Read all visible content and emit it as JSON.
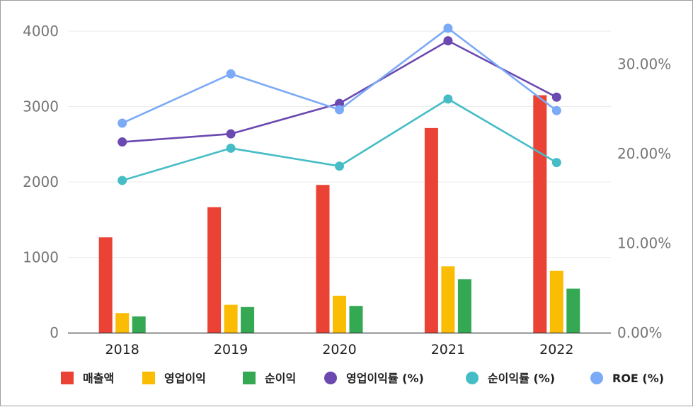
{
  "chart_data": {
    "type": "bar+line",
    "categories": [
      "2018",
      "2019",
      "2020",
      "2021",
      "2022"
    ],
    "left_axis": {
      "ticks": [
        "0",
        "1000",
        "2000",
        "3000",
        "4000"
      ],
      "ylim": [
        0,
        4000
      ]
    },
    "right_axis": {
      "ticks": [
        "0.00%",
        "10.00%",
        "20.00%",
        "30.00%"
      ],
      "ylim_percent": [
        0,
        34
      ]
    },
    "bar_series": [
      {
        "name": "매출액",
        "color": "#EA4335",
        "values": [
          1265,
          1665,
          1960,
          2715,
          3150
        ]
      },
      {
        "name": "영업이익",
        "color": "#FBBC04",
        "values": [
          260,
          370,
          490,
          880,
          820
        ]
      },
      {
        "name": "순이익",
        "color": "#34A853",
        "values": [
          215,
          340,
          355,
          710,
          585
        ]
      }
    ],
    "line_series": [
      {
        "name": "영업이익률 (%)",
        "color": "#6B49B0",
        "values": [
          21.3,
          22.2,
          25.6,
          32.6,
          26.3
        ]
      },
      {
        "name": "순이익률 (%)",
        "color": "#46BDC6",
        "values": [
          17.0,
          20.6,
          18.6,
          26.1,
          19.0
        ]
      },
      {
        "name": "ROE (%)",
        "color": "#7BAAF7",
        "values": [
          23.4,
          28.9,
          24.9,
          34.0,
          24.8
        ]
      }
    ],
    "grid": true,
    "legend_position": "bottom"
  }
}
